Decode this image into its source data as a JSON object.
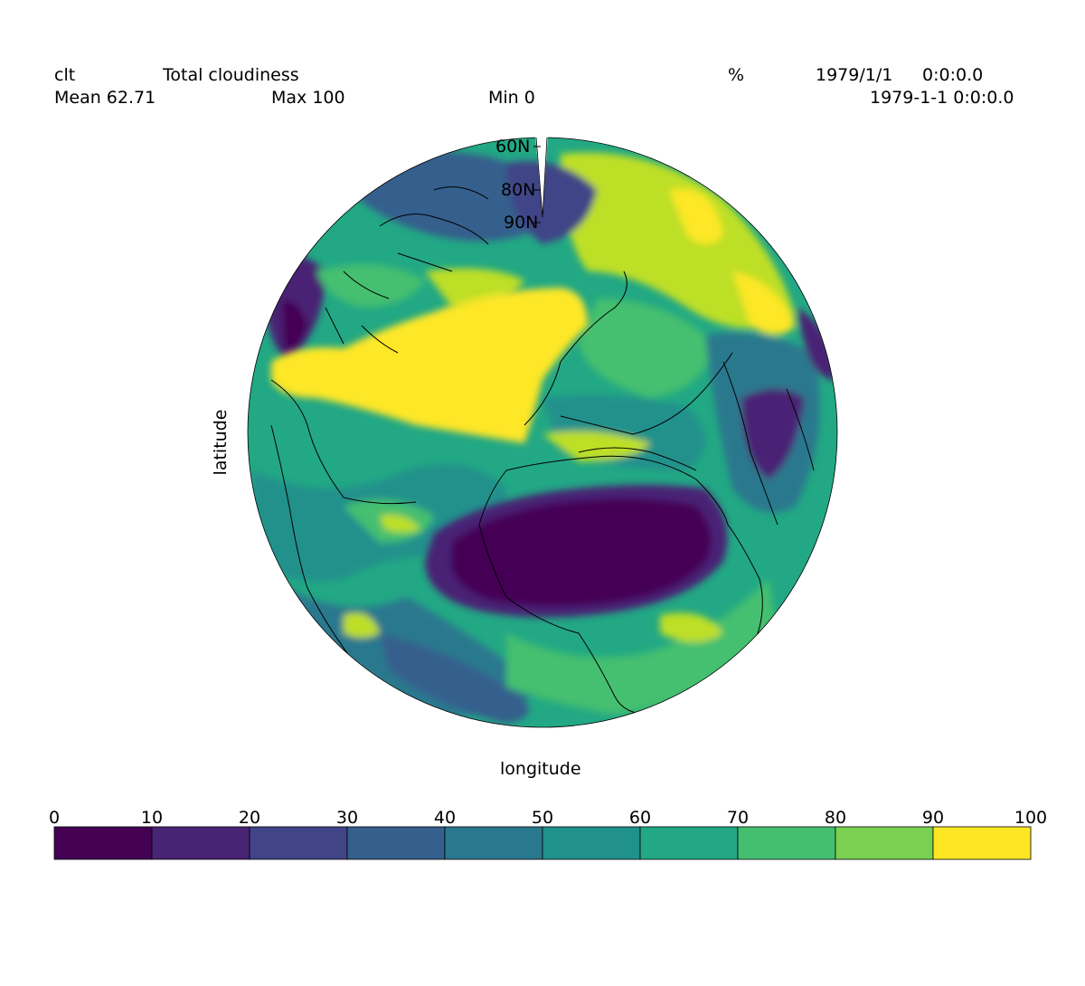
{
  "header": {
    "variable": "clt",
    "long_name": "Total cloudiness",
    "units": "%",
    "date": "1979/1/1",
    "time": "0:0:0.0",
    "datetime": "1979-1-1 0:0:0.0",
    "mean_label": "Mean 62.71",
    "max_label": "Max 100",
    "min_label": "Min 0"
  },
  "axes": {
    "xlabel": "longitude",
    "ylabel": "latitude",
    "lat_labels": [
      "60N",
      "80N",
      "90N"
    ]
  },
  "map": {
    "projection": "orthographic",
    "features": [
      {
        "name": "north-atlantic-high-cloud",
        "level": 9
      },
      {
        "name": "sahara-clear-sky",
        "level": 0
      },
      {
        "name": "arabia-clear-sky",
        "level": 1
      },
      {
        "name": "north-canada-clear",
        "level": 1
      },
      {
        "name": "south-atlantic-low-cloud",
        "level": 3
      }
    ]
  },
  "colorbar": {
    "ticks": [
      "0",
      "10",
      "20",
      "30",
      "40",
      "50",
      "60",
      "70",
      "80",
      "90",
      "100"
    ],
    "colors": [
      "#440154",
      "#482475",
      "#414487",
      "#355f8d",
      "#2a788e",
      "#21918c",
      "#22a884",
      "#44bf70",
      "#7ad151",
      "#bddf26",
      "#fde725"
    ]
  }
}
